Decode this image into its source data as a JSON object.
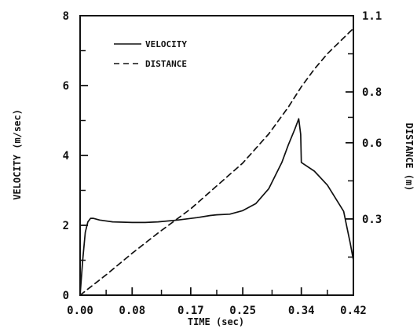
{
  "chart_data": {
    "type": "line",
    "title": "",
    "xlabel": "TIME (sec)",
    "ylabel": "VELOCITY (m/sec)",
    "y2label": "DISTANCE (m)",
    "xlim": [
      0,
      0.42
    ],
    "ylim": [
      0,
      8
    ],
    "y2lim": [
      0,
      1.1
    ],
    "grid": false,
    "legend_position": "top-left",
    "x_ticks": [
      {
        "value": 0.0,
        "label": "0.00"
      },
      {
        "value": 0.08,
        "label": "0.08"
      },
      {
        "value": 0.17,
        "label": "0.17"
      },
      {
        "value": 0.25,
        "label": "0.25"
      },
      {
        "value": 0.34,
        "label": "0.34"
      },
      {
        "value": 0.42,
        "label": "0.42"
      }
    ],
    "y_ticks": [
      {
        "value": 0,
        "label": "0"
      },
      {
        "value": 2,
        "label": "2"
      },
      {
        "value": 4,
        "label": "4"
      },
      {
        "value": 6,
        "label": "6"
      },
      {
        "value": 8,
        "label": "8"
      }
    ],
    "y2_ticks": [
      {
        "value": 0.3,
        "label": "0.3"
      },
      {
        "value": 0.6,
        "label": "0.6"
      },
      {
        "value": 0.8,
        "label": "0.8"
      },
      {
        "value": 1.1,
        "label": "1.1"
      }
    ],
    "series": [
      {
        "name": "VELOCITY",
        "axis": "left",
        "style": "solid",
        "color": "#111111",
        "x": [
          0.0,
          0.004,
          0.008,
          0.012,
          0.016,
          0.02,
          0.03,
          0.05,
          0.08,
          0.1,
          0.12,
          0.15,
          0.18,
          0.2,
          0.21,
          0.23,
          0.25,
          0.27,
          0.29,
          0.31,
          0.32,
          0.33,
          0.336,
          0.339,
          0.34,
          0.36,
          0.38,
          0.395,
          0.405,
          0.41,
          0.415,
          0.42
        ],
        "y": [
          0.0,
          1.0,
          1.8,
          2.1,
          2.2,
          2.2,
          2.15,
          2.1,
          2.08,
          2.08,
          2.1,
          2.15,
          2.22,
          2.28,
          2.3,
          2.32,
          2.42,
          2.62,
          3.05,
          3.8,
          4.3,
          4.75,
          5.05,
          4.6,
          3.8,
          3.55,
          3.15,
          2.7,
          2.4,
          1.95,
          1.5,
          1.0
        ]
      },
      {
        "name": "DISTANCE",
        "axis": "right",
        "style": "dashed",
        "color": "#111111",
        "x": [
          0.0,
          0.04,
          0.08,
          0.12,
          0.17,
          0.21,
          0.25,
          0.29,
          0.32,
          0.34,
          0.36,
          0.38,
          0.4,
          0.42
        ],
        "y": [
          0.0,
          0.08,
          0.165,
          0.245,
          0.34,
          0.43,
          0.52,
          0.635,
          0.74,
          0.82,
          0.89,
          0.95,
          1.0,
          1.05
        ]
      }
    ]
  }
}
